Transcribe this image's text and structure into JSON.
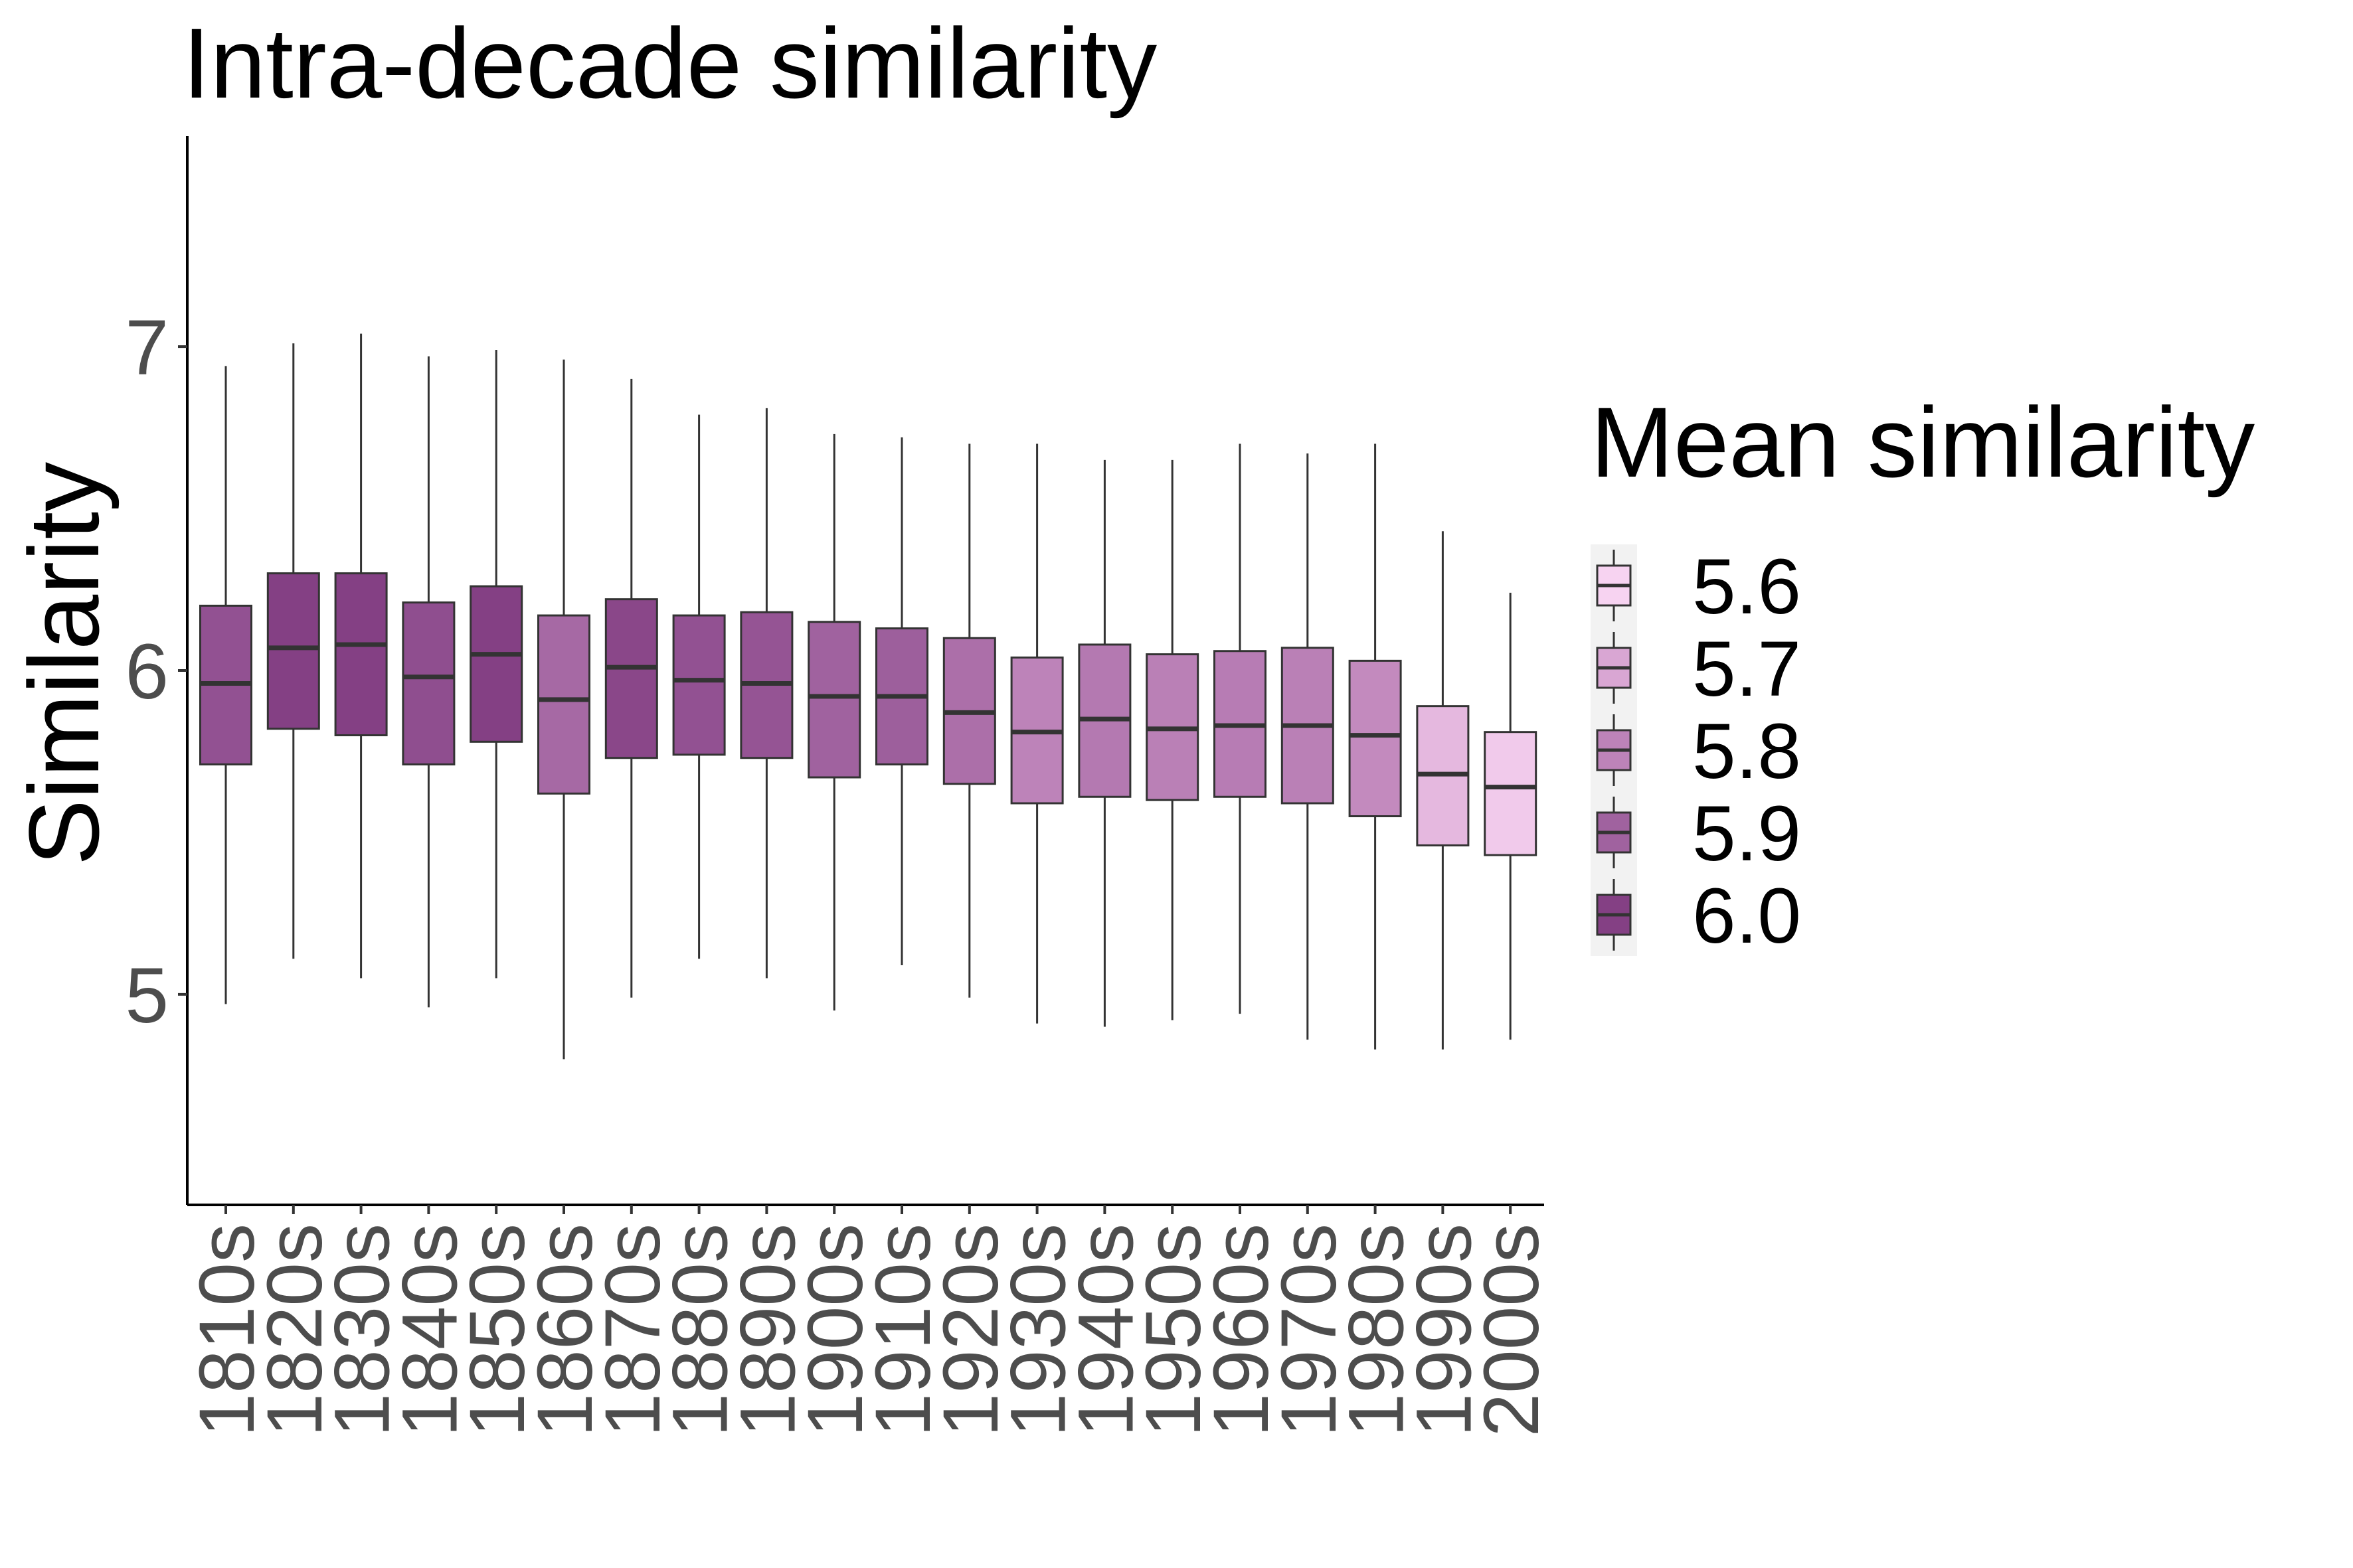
{
  "chart_data": {
    "type": "boxplot",
    "title": "Intra-decade similarity",
    "xlabel": "",
    "ylabel": "Similarity",
    "ylim": [
      4.35,
      7.65
    ],
    "yticks": [
      "5",
      "6",
      "7"
    ],
    "grid": false,
    "legend": {
      "title": "Mean similarity",
      "position": "right",
      "entries": [
        {
          "label": "5.6",
          "color": "#f7d3f1"
        },
        {
          "label": "5.7",
          "color": "#d9a6d3"
        },
        {
          "label": "5.8",
          "color": "#bd83b9"
        },
        {
          "label": "5.9",
          "color": "#a0629f"
        },
        {
          "label": "6.0",
          "color": "#844084"
        }
      ]
    },
    "categories": [
      "1810s",
      "1820s",
      "1830s",
      "1840s",
      "1850s",
      "1860s",
      "1870s",
      "1880s",
      "1890s",
      "1900s",
      "1910s",
      "1920s",
      "1930s",
      "1940s",
      "1950s",
      "1960s",
      "1970s",
      "1980s",
      "1990s",
      "2000s"
    ],
    "boxes": [
      {
        "min": 4.97,
        "q1": 5.71,
        "median": 5.96,
        "q3": 6.2,
        "max": 6.94,
        "mean": 5.95
      },
      {
        "min": 5.11,
        "q1": 5.82,
        "median": 6.07,
        "q3": 6.3,
        "max": 7.01,
        "mean": 6.06
      },
      {
        "min": 5.05,
        "q1": 5.8,
        "median": 6.08,
        "q3": 6.3,
        "max": 7.04,
        "mean": 6.06
      },
      {
        "min": 4.96,
        "q1": 5.71,
        "median": 5.98,
        "q3": 6.21,
        "max": 6.97,
        "mean": 5.96
      },
      {
        "min": 5.05,
        "q1": 5.78,
        "median": 6.05,
        "q3": 6.26,
        "max": 6.99,
        "mean": 6.02
      },
      {
        "min": 4.8,
        "q1": 5.62,
        "median": 5.91,
        "q3": 6.17,
        "max": 6.96,
        "mean": 5.88
      },
      {
        "min": 4.99,
        "q1": 5.73,
        "median": 6.01,
        "q3": 6.22,
        "max": 6.9,
        "mean": 5.98
      },
      {
        "min": 5.11,
        "q1": 5.74,
        "median": 5.97,
        "q3": 6.17,
        "max": 6.79,
        "mean": 5.95
      },
      {
        "min": 5.05,
        "q1": 5.73,
        "median": 5.96,
        "q3": 6.18,
        "max": 6.81,
        "mean": 5.94
      },
      {
        "min": 4.95,
        "q1": 5.67,
        "median": 5.92,
        "q3": 6.15,
        "max": 6.73,
        "mean": 5.9
      },
      {
        "min": 5.09,
        "q1": 5.71,
        "median": 5.92,
        "q3": 6.13,
        "max": 6.72,
        "mean": 5.91
      },
      {
        "min": 4.99,
        "q1": 5.65,
        "median": 5.87,
        "q3": 6.1,
        "max": 6.7,
        "mean": 5.86
      },
      {
        "min": 4.91,
        "q1": 5.59,
        "median": 5.81,
        "q3": 6.04,
        "max": 6.7,
        "mean": 5.8
      },
      {
        "min": 4.9,
        "q1": 5.61,
        "median": 5.85,
        "q3": 6.08,
        "max": 6.65,
        "mean": 5.83
      },
      {
        "min": 4.92,
        "q1": 5.6,
        "median": 5.82,
        "q3": 6.05,
        "max": 6.65,
        "mean": 5.81
      },
      {
        "min": 4.94,
        "q1": 5.61,
        "median": 5.83,
        "q3": 6.06,
        "max": 6.7,
        "mean": 5.82
      },
      {
        "min": 4.86,
        "q1": 5.59,
        "median": 5.83,
        "q3": 6.07,
        "max": 6.67,
        "mean": 5.81
      },
      {
        "min": 4.83,
        "q1": 5.55,
        "median": 5.8,
        "q3": 6.03,
        "max": 6.7,
        "mean": 5.78
      },
      {
        "min": 4.83,
        "q1": 5.46,
        "median": 5.68,
        "q3": 5.89,
        "max": 6.43,
        "mean": 5.66
      },
      {
        "min": 4.86,
        "q1": 5.43,
        "median": 5.64,
        "q3": 5.81,
        "max": 6.24,
        "mean": 5.62
      }
    ]
  }
}
